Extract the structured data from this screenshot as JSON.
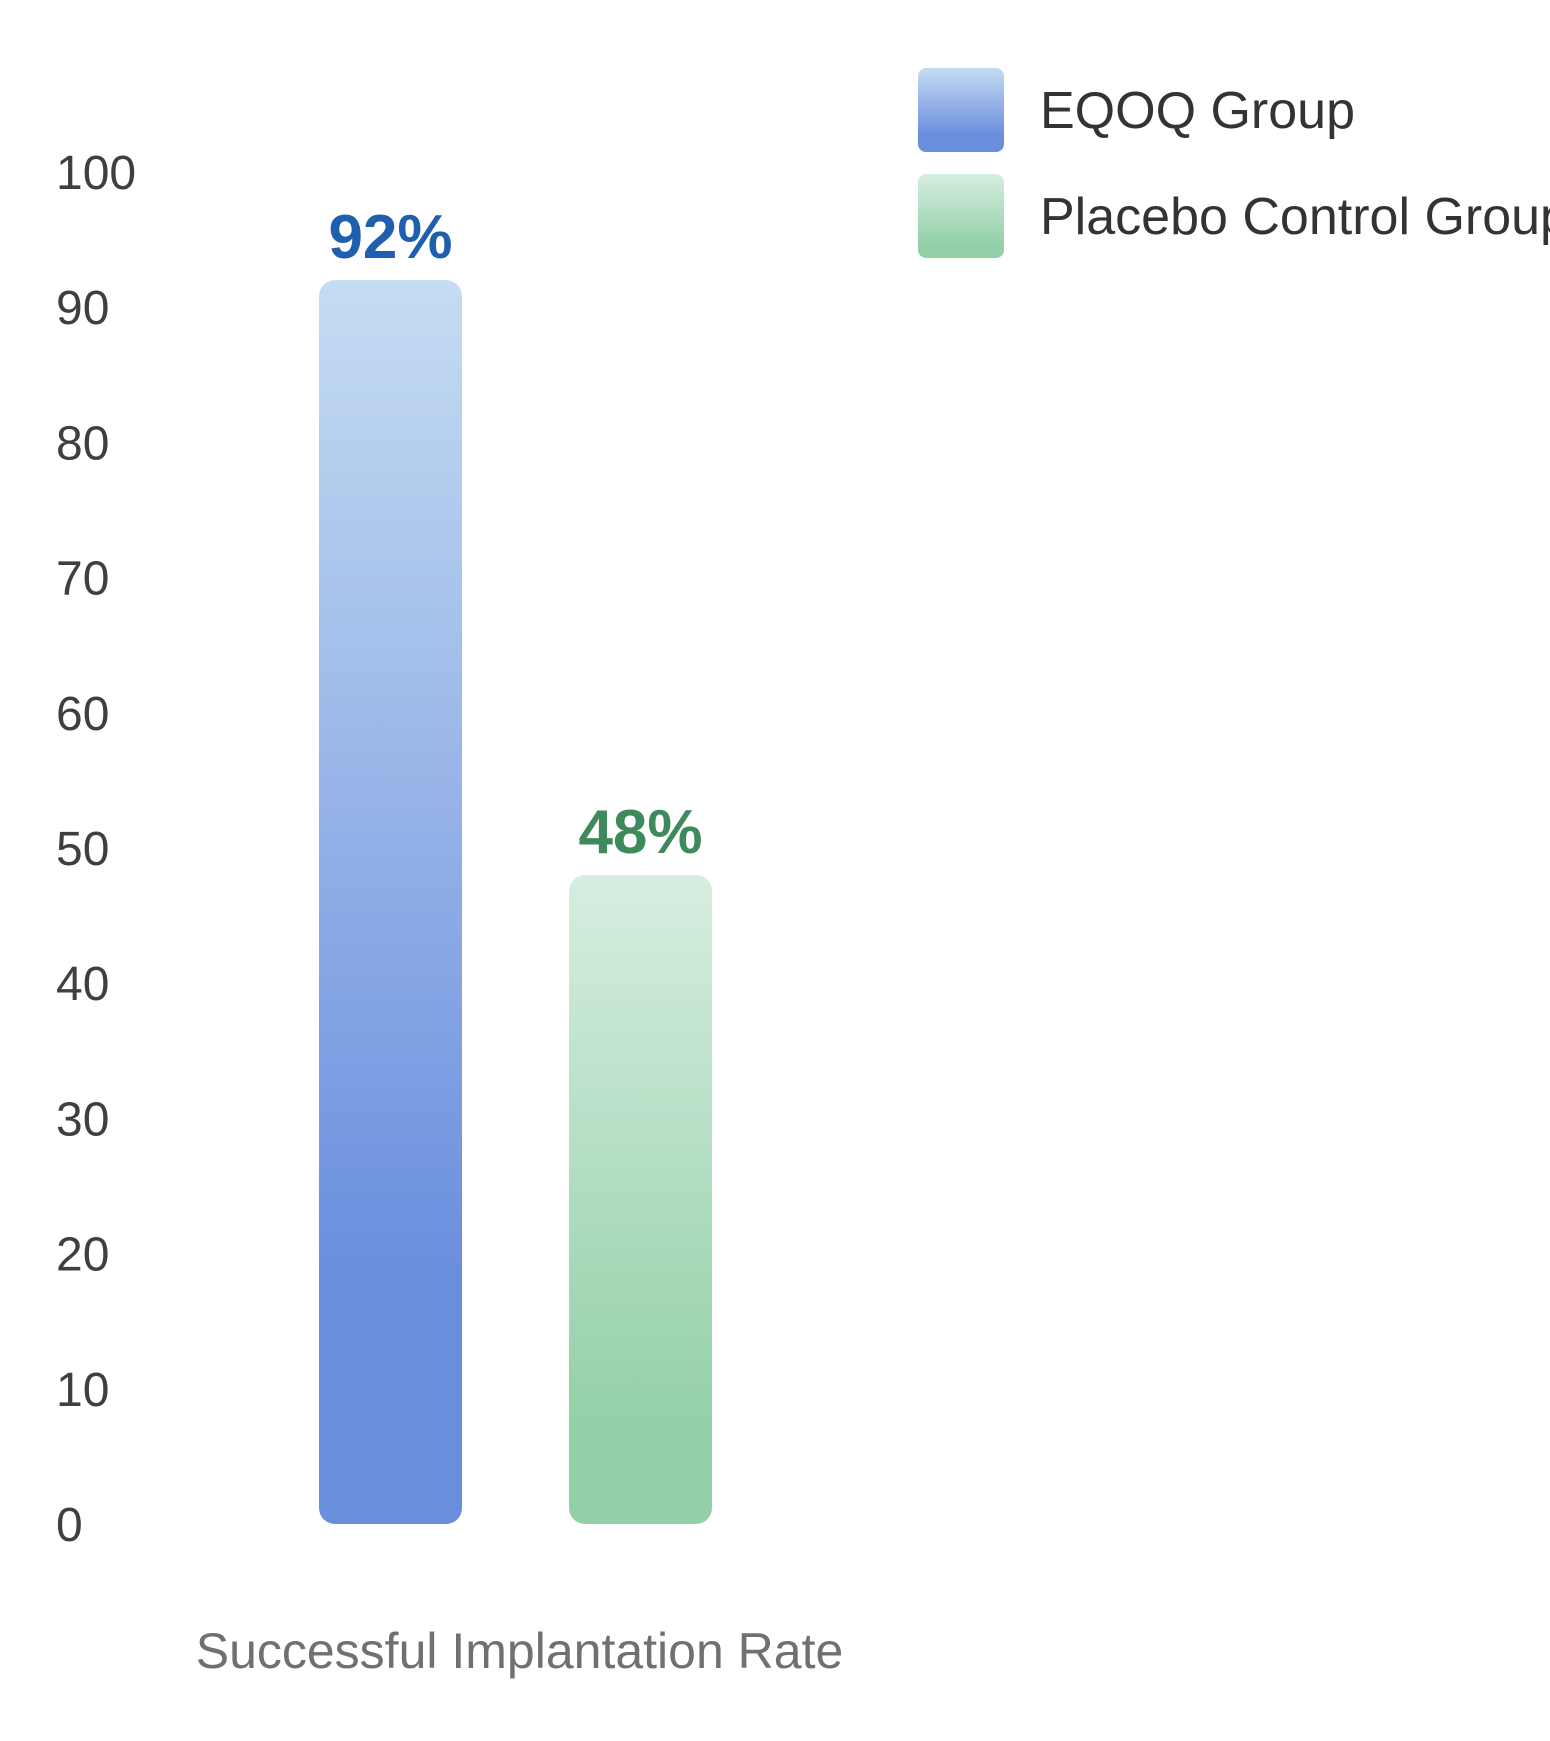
{
  "chart_data": {
    "type": "bar",
    "categories": [
      "Successful Implantation Rate"
    ],
    "series": [
      {
        "name": "EQOQ Group",
        "values": [
          92
        ],
        "value_label": "92%",
        "label_color": "#1f5fb0",
        "gradient": [
          "#c5dcf2",
          "#6a8ede"
        ]
      },
      {
        "name": "Placebo Control Group",
        "values": [
          48
        ],
        "value_label": "48%",
        "label_color": "#3f8a5c",
        "gradient": [
          "#d6ede0",
          "#93d0a8"
        ]
      }
    ],
    "ylim": [
      0,
      100
    ],
    "yticks": [
      0,
      10,
      20,
      30,
      40,
      50,
      60,
      70,
      80,
      90,
      100
    ],
    "grid": false,
    "legend_position": "top-right",
    "xlabel": "",
    "ylabel": "",
    "title": ""
  }
}
